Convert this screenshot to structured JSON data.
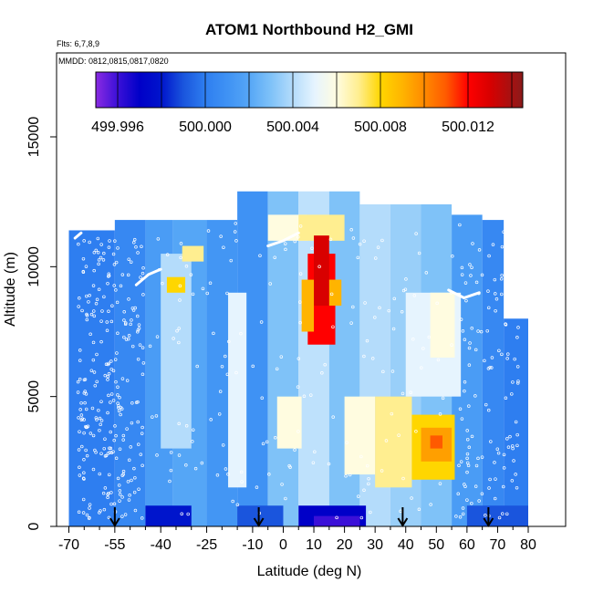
{
  "chart_data": {
    "type": "heatmap",
    "title": "ATOM1 Northbound H2_GMI",
    "annotations": [
      "Flts: 6,7,8,9",
      "MMDD: 0812,0815,0817,0820"
    ],
    "xlabel": "Latitude (deg N)",
    "ylabel": "Altitude (m)",
    "xlim": [
      -70,
      80
    ],
    "ylim": [
      0,
      18000
    ],
    "xticks": [
      -70,
      -55,
      -40,
      -25,
      -10,
      0,
      10,
      20,
      30,
      40,
      50,
      60,
      70,
      80
    ],
    "xtick_labels": [
      "-70",
      "-55",
      "-40",
      "-25",
      "-10",
      "0",
      "10",
      "20",
      "30",
      "40",
      "50",
      "60",
      "70",
      "80"
    ],
    "xminor_ticks": [
      -65,
      -60,
      -50,
      -45,
      -35,
      -30,
      -20,
      -15,
      -5,
      5,
      15,
      25,
      35,
      45,
      55,
      65,
      75
    ],
    "yticks": [
      0,
      5000,
      10000,
      15000
    ],
    "ytick_labels": [
      "0",
      "5000",
      "10000",
      "15000"
    ],
    "colorbar": {
      "min": 499.995,
      "max": 500.0145,
      "ticks": [
        499.996,
        500.0,
        500.004,
        500.008,
        500.012
      ],
      "tick_labels": [
        "499.996",
        "500.000",
        "500.004",
        "500.008",
        "500.012"
      ],
      "stops": [
        [
          499.995,
          "#8a2be2"
        ],
        [
          499.996,
          "#3b10d8"
        ],
        [
          499.997,
          "#0000c8"
        ],
        [
          499.998,
          "#0015cc"
        ],
        [
          499.999,
          "#1a55dd"
        ],
        [
          500.0,
          "#2e7ef0"
        ],
        [
          500.001,
          "#3f92f4"
        ],
        [
          500.002,
          "#55a6f6"
        ],
        [
          500.003,
          "#7fc2f8"
        ],
        [
          500.004,
          "#b4dcfb"
        ],
        [
          500.005,
          "#e6f4fe"
        ],
        [
          500.006,
          "#fffce0"
        ],
        [
          500.007,
          "#ffee90"
        ],
        [
          500.008,
          "#ffd600"
        ],
        [
          500.009,
          "#ffb400"
        ],
        [
          500.01,
          "#ff8a00"
        ],
        [
          500.011,
          "#ff5a00"
        ],
        [
          500.012,
          "#ff0000"
        ],
        [
          500.013,
          "#d80000"
        ],
        [
          500.0145,
          "#8b1a1a"
        ]
      ]
    },
    "cells": [
      {
        "x": [
          -70,
          -55
        ],
        "y": [
          0,
          11400
        ],
        "v": 500.0
      },
      {
        "x": [
          -55,
          -45
        ],
        "y": [
          0,
          11800
        ],
        "v": 500.0005
      },
      {
        "x": [
          -45,
          -36
        ],
        "y": [
          0,
          11800
        ],
        "v": 500.0015
      },
      {
        "x": [
          -36,
          -25
        ],
        "y": [
          0,
          11800
        ],
        "v": 500.002
      },
      {
        "x": [
          -25,
          -15
        ],
        "y": [
          0,
          11800
        ],
        "v": 500.0012
      },
      {
        "x": [
          -15,
          -5
        ],
        "y": [
          0,
          12900
        ],
        "v": 500.001
      },
      {
        "x": [
          -5,
          5
        ],
        "y": [
          0,
          12900
        ],
        "v": 500.003
      },
      {
        "x": [
          5,
          15
        ],
        "y": [
          0,
          12900
        ],
        "v": 500.0042
      },
      {
        "x": [
          15,
          25
        ],
        "y": [
          0,
          12900
        ],
        "v": 500.003
      },
      {
        "x": [
          25,
          35
        ],
        "y": [
          0,
          12400
        ],
        "v": 500.004
      },
      {
        "x": [
          35,
          45
        ],
        "y": [
          0,
          12400
        ],
        "v": 500.0035
      },
      {
        "x": [
          45,
          55
        ],
        "y": [
          0,
          12400
        ],
        "v": 500.003
      },
      {
        "x": [
          55,
          65
        ],
        "y": [
          0,
          12000
        ],
        "v": 500.0015
      },
      {
        "x": [
          65,
          72
        ],
        "y": [
          0,
          11800
        ],
        "v": 500.0005
      },
      {
        "x": [
          72,
          80
        ],
        "y": [
          0,
          8000
        ],
        "v": 500.0
      },
      {
        "x": [
          -40,
          -30
        ],
        "y": [
          3000,
          10500
        ],
        "v": 500.004
      },
      {
        "x": [
          -38,
          -32
        ],
        "y": [
          9000,
          9600
        ],
        "v": 500.008
      },
      {
        "x": [
          -33,
          -26
        ],
        "y": [
          10200,
          10800
        ],
        "v": 500.007
      },
      {
        "x": [
          -18,
          -12
        ],
        "y": [
          1500,
          9000
        ],
        "v": 500.005
      },
      {
        "x": [
          -5,
          8
        ],
        "y": [
          11000,
          12000
        ],
        "v": 500.006
      },
      {
        "x": [
          5,
          20
        ],
        "y": [
          11000,
          12000
        ],
        "v": 500.007
      },
      {
        "x": [
          8,
          17
        ],
        "y": [
          7000,
          10500
        ],
        "v": 500.012
      },
      {
        "x": [
          10,
          15
        ],
        "y": [
          8500,
          11200
        ],
        "v": 500.013
      },
      {
        "x": [
          6,
          10
        ],
        "y": [
          7500,
          9500
        ],
        "v": 500.009
      },
      {
        "x": [
          15,
          19
        ],
        "y": [
          8500,
          9500
        ],
        "v": 500.009
      },
      {
        "x": [
          -2,
          6
        ],
        "y": [
          3000,
          5000
        ],
        "v": 500.006
      },
      {
        "x": [
          20,
          30
        ],
        "y": [
          2000,
          5000
        ],
        "v": 500.006
      },
      {
        "x": [
          30,
          42
        ],
        "y": [
          1500,
          5000
        ],
        "v": 500.007
      },
      {
        "x": [
          42,
          56
        ],
        "y": [
          1800,
          4300
        ],
        "v": 500.008
      },
      {
        "x": [
          45,
          55
        ],
        "y": [
          2500,
          3800
        ],
        "v": 500.0095
      },
      {
        "x": [
          48,
          52
        ],
        "y": [
          3000,
          3500
        ],
        "v": 500.011
      },
      {
        "x": [
          40,
          58
        ],
        "y": [
          5000,
          9000
        ],
        "v": 500.005
      },
      {
        "x": [
          48,
          56
        ],
        "y": [
          6500,
          9000
        ],
        "v": 500.006
      },
      {
        "x": [
          -70,
          -55
        ],
        "y": [
          0,
          800
        ],
        "v": 500.0
      },
      {
        "x": [
          -45,
          -30
        ],
        "y": [
          0,
          800
        ],
        "v": 499.998
      },
      {
        "x": [
          -15,
          0
        ],
        "y": [
          0,
          800
        ],
        "v": 499.999
      },
      {
        "x": [
          5,
          27
        ],
        "y": [
          0,
          800
        ],
        "v": 499.997
      },
      {
        "x": [
          10,
          25
        ],
        "y": [
          0,
          400
        ],
        "v": 499.996
      },
      {
        "x": [
          60,
          80
        ],
        "y": [
          0,
          800
        ],
        "v": 499.999
      }
    ],
    "arrows_x": [
      -55,
      -8,
      39,
      67
    ]
  }
}
